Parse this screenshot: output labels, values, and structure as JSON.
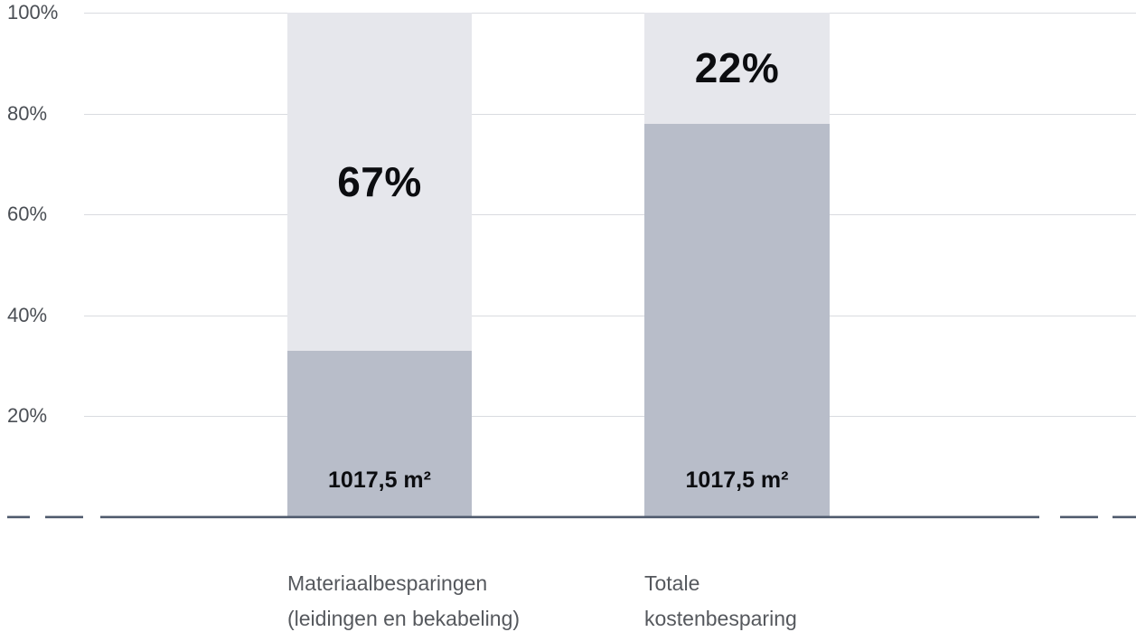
{
  "chart_data": {
    "type": "bar",
    "stacked": true,
    "title": "",
    "xlabel": "",
    "ylabel": "",
    "ylim": [
      0,
      100
    ],
    "grid": "horizontal",
    "legend_position": "none",
    "yticks": [
      {
        "value": 100,
        "label": "100%"
      },
      {
        "value": 80,
        "label": "80%"
      },
      {
        "value": 60,
        "label": "60%"
      },
      {
        "value": 40,
        "label": "40%"
      },
      {
        "value": 20,
        "label": "20%"
      }
    ],
    "categories": [
      "Materiaalbesparingen (leidingen en bekabeling)",
      "Totale kostenbesparing"
    ],
    "series": [
      {
        "name": "besparing (onderste segment)",
        "color": "#b8bdc9",
        "values": [
          33,
          78
        ]
      },
      {
        "name": "overig (bovenste segment)",
        "color": "#e6e7ec",
        "values": [
          67,
          22
        ]
      }
    ],
    "bars": [
      {
        "category_lines": [
          "Materiaalbesparingen",
          "(leidingen en bekabeling)"
        ],
        "bottom_pct": 33,
        "top_pct": 67,
        "top_label": "67%",
        "bottom_label": "1017,5 m²"
      },
      {
        "category_lines": [
          "Totale",
          "kostenbesparing"
        ],
        "bottom_pct": 78,
        "top_pct": 22,
        "top_label": "22%",
        "bottom_label": "1017,5 m²"
      }
    ],
    "colors": {
      "segment_top": "#e6e7ec",
      "segment_bottom": "#b8bdc9",
      "axis_line": "#4e5a6c",
      "gridline": "#d9dbe0",
      "tick_label": "#4a4e54",
      "category_label": "#55585d",
      "data_label": "#0c0d10"
    }
  }
}
